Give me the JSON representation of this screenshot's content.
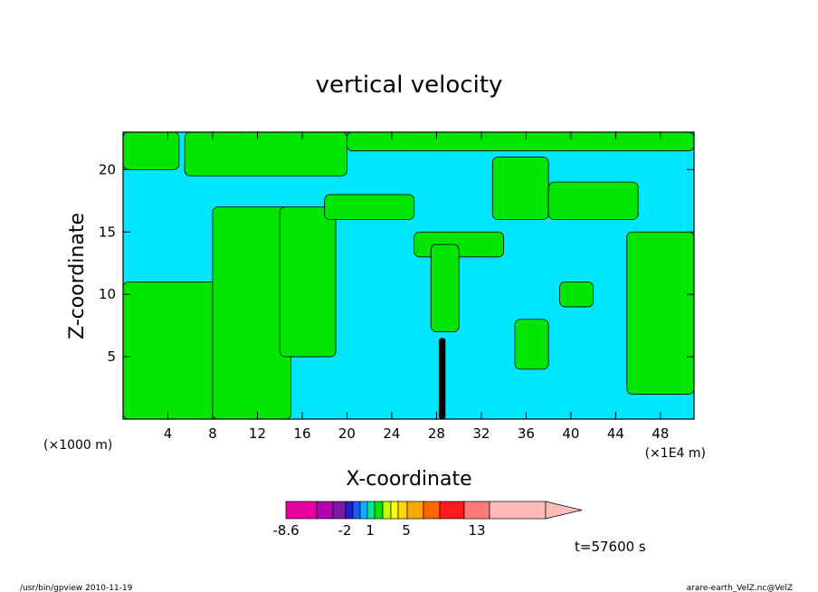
{
  "chart_data": {
    "type": "heatmap",
    "title": "vertical velocity",
    "xlabel": "X-coordinate",
    "ylabel": "Z-coordinate",
    "x_unit_left": "(×1000 m)",
    "x_unit_right": "(×1E4 m)",
    "xlim": [
      0,
      51
    ],
    "ylim": [
      0,
      23
    ],
    "x_ticks": [
      "4",
      "8",
      "12",
      "16",
      "20",
      "24",
      "28",
      "32",
      "36",
      "40",
      "44",
      "48"
    ],
    "x_tick_values": [
      4,
      8,
      12,
      16,
      20,
      24,
      28,
      32,
      36,
      40,
      44,
      48
    ],
    "y_ticks": [
      "5",
      "10",
      "15",
      "20"
    ],
    "y_tick_values": [
      5,
      10,
      15,
      20
    ],
    "background_color": "#00e6ff",
    "positive_color": "#00e600",
    "core_color": "#000000",
    "green_regions": [
      {
        "shape": "rect",
        "x": [
          0,
          5
        ],
        "y": [
          20,
          23
        ]
      },
      {
        "shape": "rect",
        "x": [
          5.5,
          20
        ],
        "y": [
          19.5,
          23
        ]
      },
      {
        "shape": "rect",
        "x": [
          20,
          51
        ],
        "y": [
          21.5,
          23
        ]
      },
      {
        "shape": "rect",
        "x": [
          0,
          11
        ],
        "y": [
          0,
          11
        ]
      },
      {
        "shape": "rect",
        "x": [
          8,
          15
        ],
        "y": [
          0,
          17
        ]
      },
      {
        "shape": "rect",
        "x": [
          14,
          19
        ],
        "y": [
          5,
          17
        ]
      },
      {
        "shape": "rect",
        "x": [
          18,
          26
        ],
        "y": [
          16,
          18
        ]
      },
      {
        "shape": "rect",
        "x": [
          26,
          34
        ],
        "y": [
          13,
          15
        ]
      },
      {
        "shape": "rect",
        "x": [
          27.5,
          30
        ],
        "y": [
          7,
          14
        ]
      },
      {
        "shape": "rect",
        "x": [
          33,
          38
        ],
        "y": [
          16,
          21
        ]
      },
      {
        "shape": "rect",
        "x": [
          35,
          38
        ],
        "y": [
          4,
          8
        ]
      },
      {
        "shape": "rect",
        "x": [
          38,
          46
        ],
        "y": [
          16,
          19
        ]
      },
      {
        "shape": "rect",
        "x": [
          45,
          51
        ],
        "y": [
          2,
          15
        ]
      },
      {
        "shape": "rect",
        "x": [
          39,
          42
        ],
        "y": [
          9,
          11
        ]
      }
    ],
    "core_region": {
      "x": [
        28.2,
        28.8
      ],
      "y": [
        0,
        6.5
      ]
    },
    "colorbar": {
      "labels": [
        "-8.6",
        "-2",
        "1",
        "5",
        "13"
      ],
      "colors": [
        "#e6009f",
        "#b000b0",
        "#7a1aaa",
        "#2020d0",
        "#1e5aff",
        "#00b4ff",
        "#00e6a0",
        "#00e600",
        "#c8ff00",
        "#ffff00",
        "#ffd700",
        "#ffa500",
        "#ff6600",
        "#ff1a1a",
        "#ff7a7a",
        "#ffbaba"
      ]
    }
  },
  "footer": {
    "time_label": "t=57600 s",
    "left_text": "/usr/bin/gpview   2010-11-19",
    "right_text": "arare-earth_VelZ.nc@VelZ"
  }
}
